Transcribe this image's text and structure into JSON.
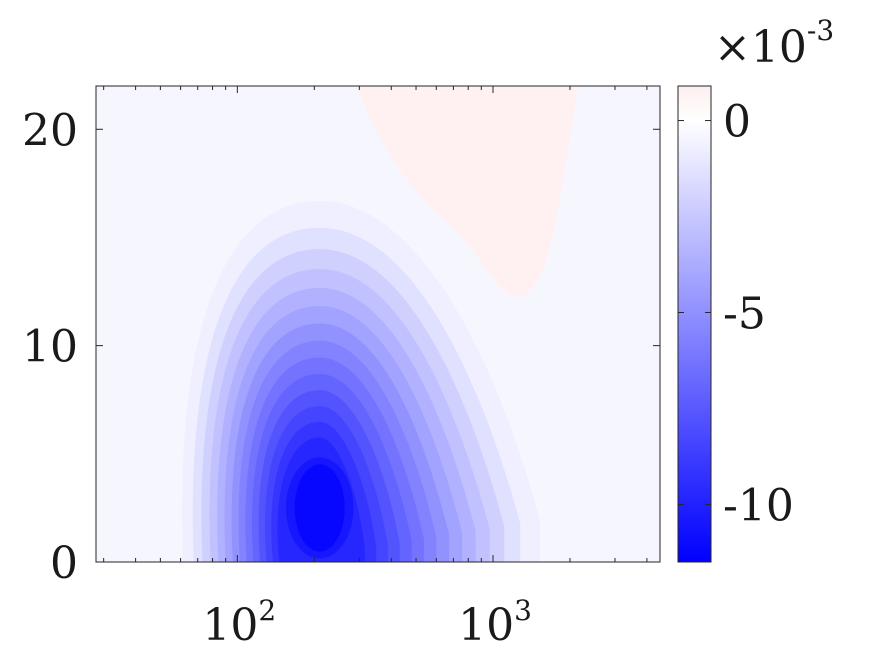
{
  "chart_data": {
    "type": "heatmap",
    "title": "",
    "xlabel": "",
    "ylabel": "",
    "x_scale": "log",
    "xlim": [
      28,
      4500
    ],
    "ylim": [
      0,
      22
    ],
    "x_ticks": [
      {
        "value": 100,
        "base": "10",
        "exponent": "2"
      },
      {
        "value": 1000,
        "base": "10",
        "exponent": "3"
      }
    ],
    "y_ticks": [
      {
        "value": 0,
        "label": "0"
      },
      {
        "value": 10,
        "label": "10"
      },
      {
        "value": 20,
        "label": "20"
      }
    ],
    "colorbar": {
      "range": [
        -0.0115,
        0.0009
      ],
      "multiplier_base": "×10",
      "multiplier_exponent": "-3",
      "ticks": [
        {
          "value": 0,
          "label": "0"
        },
        {
          "value": -0.005,
          "label": "-5"
        },
        {
          "value": -0.01,
          "label": "-10"
        }
      ],
      "colors": {
        "min": "#0000ff",
        "zero": "#ffffff",
        "max": "#ff7f7f"
      }
    },
    "contour_step": -0.0007,
    "field": {
      "minimum": {
        "x": 210,
        "y": 2.5,
        "value": -0.0115
      },
      "maximum": {
        "x": 1500,
        "y": 22,
        "value": 0.0007
      },
      "background_value": -0.0004
    }
  }
}
